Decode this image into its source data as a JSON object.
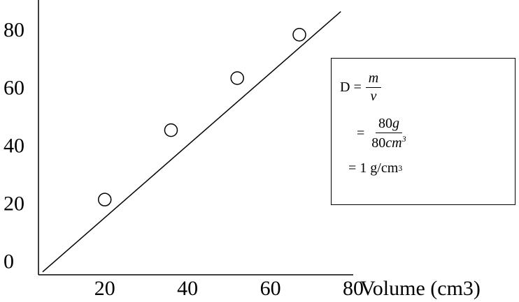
{
  "chart_data": {
    "type": "scatter",
    "xlabel": "Volume (cm3)",
    "ylabel": "",
    "x_ticks": [
      20,
      40,
      60,
      80
    ],
    "y_ticks": [
      0,
      20,
      40,
      60,
      80
    ],
    "xlim": [
      4,
      80
    ],
    "ylim": [
      -5,
      90
    ],
    "points": [
      {
        "x": 20,
        "y": 21
      },
      {
        "x": 36,
        "y": 45
      },
      {
        "x": 52,
        "y": 63
      },
      {
        "x": 67,
        "y": 78
      }
    ],
    "fit_line": {
      "x": [
        5,
        77
      ],
      "y": [
        -4,
        86
      ]
    },
    "grid": false
  },
  "formula": {
    "line1_lhs": "D =",
    "line1_num": "m",
    "line1_den": "v",
    "line2_eq": "=",
    "line2_num_value": "80",
    "line2_num_unit": "g",
    "line2_den_value": "80",
    "line2_den_unit": "cm",
    "line2_den_exp": "3",
    "line3_text": "= 1 g/cm",
    "line3_exp": "3"
  }
}
